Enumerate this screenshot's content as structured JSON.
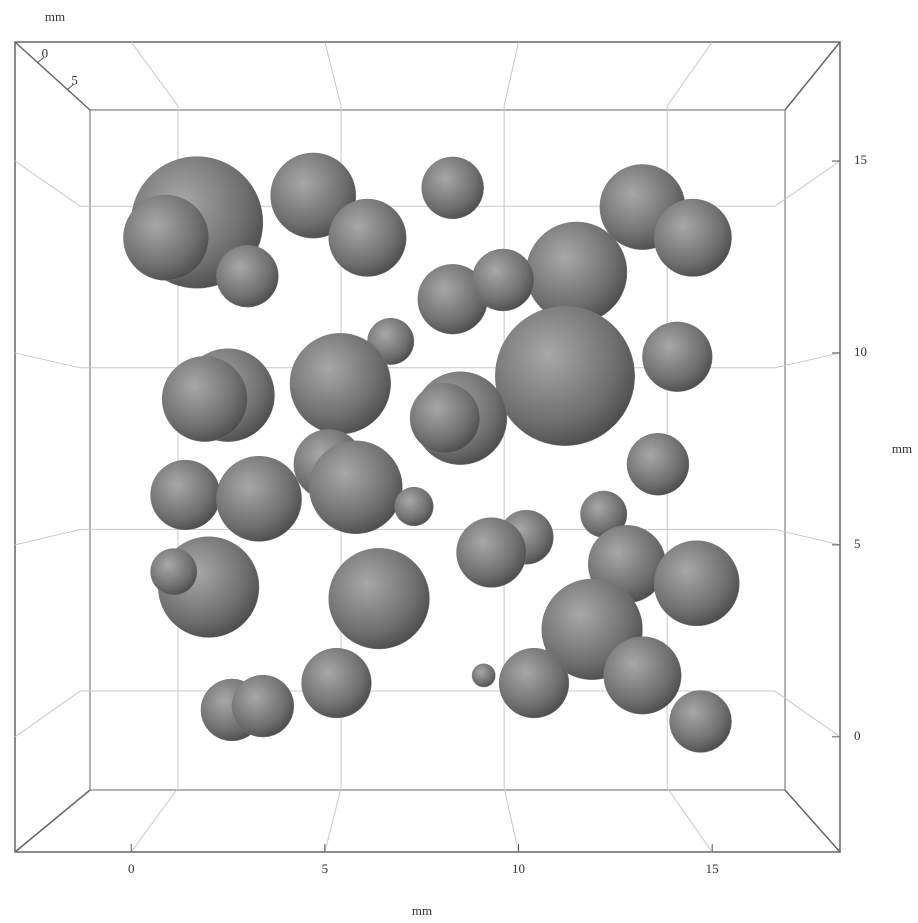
{
  "chart_data": {
    "type": "bubble3d",
    "xlabel": "mm",
    "ylabel": "mm",
    "zlabel": "mm",
    "xlim": [
      -3,
      18.3
    ],
    "ylim": [
      -3,
      18.1
    ],
    "zlim": [
      -3.8,
      8.8
    ],
    "xticks": [
      0,
      5,
      10,
      15
    ],
    "yticks": [
      0,
      5,
      10,
      15
    ],
    "zticks": [
      0,
      5
    ],
    "grid": true,
    "color": "#7a7a7a",
    "x": [
      1.7,
      0.9,
      3.0,
      4.7,
      6.1,
      8.3,
      13.2,
      14.5,
      11.5,
      8.3,
      9.6,
      6.7,
      11.2,
      14.1,
      2.5,
      1.9,
      5.4,
      8.5,
      8.1,
      13.6,
      5.1,
      5.8,
      1.4,
      3.3,
      7.3,
      12.2,
      10.2,
      9.3,
      12.8,
      14.6,
      2.0,
      1.1,
      6.4,
      11.9,
      13.2,
      5.3,
      2.6,
      3.4,
      9.1,
      10.4,
      14.7
    ],
    "values": [
      13.4,
      13.0,
      12.0,
      14.1,
      13.0,
      14.3,
      13.8,
      13.0,
      12.1,
      11.4,
      11.9,
      10.3,
      9.4,
      9.9,
      8.9,
      8.8,
      9.2,
      8.3,
      8.3,
      7.1,
      7.1,
      6.5,
      6.3,
      6.2,
      6.0,
      5.8,
      5.2,
      4.8,
      4.5,
      4.0,
      3.9,
      4.3,
      3.6,
      2.8,
      1.6,
      1.4,
      0.7,
      0.8,
      1.6,
      1.4,
      0.4
    ],
    "sizes": [
      1.7,
      1.1,
      0.8,
      1.1,
      1.0,
      0.8,
      1.1,
      1.0,
      1.3,
      0.9,
      0.8,
      0.6,
      1.8,
      0.9,
      1.2,
      1.1,
      1.3,
      1.2,
      0.9,
      0.8,
      0.9,
      1.2,
      0.9,
      1.1,
      0.5,
      0.6,
      0.7,
      0.9,
      1.0,
      1.1,
      1.3,
      0.6,
      1.3,
      1.3,
      1.0,
      0.9,
      0.8,
      0.8,
      0.3,
      0.9,
      0.8
    ]
  }
}
